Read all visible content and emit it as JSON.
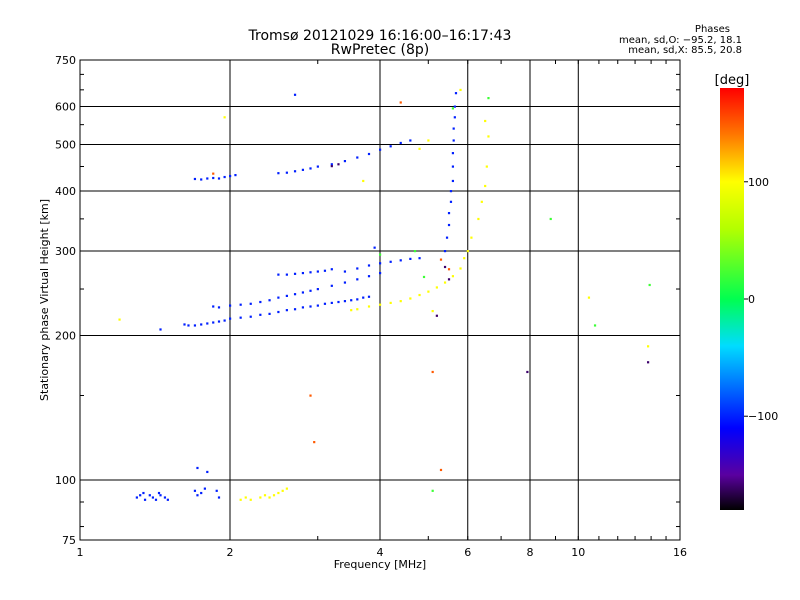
{
  "header": {
    "title": "Tromsø 20121029 16:16:00–16:17:43",
    "subtitle": "RwPretec (8p)",
    "phases_title": "Phases",
    "phases_o": "mean, sd,O: −95.2, 18.1",
    "phases_x": "mean, sd,X: 85.5, 20.8"
  },
  "colorbar": {
    "label": "[deg]",
    "range": [
      -180,
      180
    ],
    "ticks": [
      100,
      0,
      -100
    ],
    "tick_labels": [
      "100",
      "0",
      "−100"
    ]
  },
  "chart_data": {
    "type": "scatter",
    "title": "Tromsø 20121029 16:16:00–16:17:43",
    "subtitle": "RwPretec (8p)",
    "xlabel": "Frequency [MHz]",
    "ylabel": "Stationary phase Virtual Height [km]",
    "x_scale": "log",
    "y_scale": "log",
    "xlim": [
      1,
      16
    ],
    "ylim": [
      75,
      750
    ],
    "grid": true,
    "x_ticks": [
      1,
      2,
      4,
      6,
      8,
      10,
      16
    ],
    "x_tick_labels": [
      "1",
      "2",
      "4",
      "6",
      "8",
      "10",
      "16"
    ],
    "y_ticks": [
      75,
      100,
      200,
      300,
      400,
      500,
      600,
      750
    ],
    "y_tick_labels": [
      "75",
      "100",
      "200",
      "300",
      "400",
      "500",
      "600",
      "750"
    ],
    "color_variable": "phase [deg]",
    "series": [
      {
        "color_phase": -100,
        "points": [
          [
            1.3,
            92
          ],
          [
            1.32,
            93
          ],
          [
            1.35,
            91
          ],
          [
            1.38,
            93
          ],
          [
            1.4,
            92
          ],
          [
            1.42,
            91
          ],
          [
            1.45,
            93
          ],
          [
            1.48,
            92
          ],
          [
            1.5,
            91
          ],
          [
            1.34,
            94
          ],
          [
            1.44,
            94
          ],
          [
            1.7,
            95
          ],
          [
            1.72,
            93
          ],
          [
            1.75,
            94
          ],
          [
            1.78,
            96
          ],
          [
            1.8,
            104
          ],
          [
            1.72,
            106
          ],
          [
            1.88,
            95
          ],
          [
            1.9,
            92
          ],
          [
            1.62,
            211
          ],
          [
            1.65,
            210
          ],
          [
            1.7,
            210
          ],
          [
            1.75,
            211
          ],
          [
            1.8,
            212
          ],
          [
            1.85,
            213
          ],
          [
            1.9,
            214
          ],
          [
            1.95,
            215
          ],
          [
            2.0,
            217
          ],
          [
            2.1,
            218
          ],
          [
            2.2,
            219
          ],
          [
            2.3,
            221
          ],
          [
            2.4,
            222
          ],
          [
            2.5,
            224
          ],
          [
            2.6,
            226
          ],
          [
            2.7,
            227
          ],
          [
            2.8,
            229
          ],
          [
            2.9,
            230
          ],
          [
            3.0,
            231
          ],
          [
            3.1,
            233
          ],
          [
            3.2,
            234
          ],
          [
            3.3,
            235
          ],
          [
            3.4,
            236
          ],
          [
            3.5,
            237
          ],
          [
            3.6,
            238
          ],
          [
            3.7,
            240
          ],
          [
            3.8,
            241
          ],
          [
            1.85,
            230
          ],
          [
            1.9,
            229
          ],
          [
            2.0,
            231
          ],
          [
            2.1,
            232
          ],
          [
            2.2,
            233
          ],
          [
            2.3,
            235
          ],
          [
            2.4,
            237
          ],
          [
            2.5,
            240
          ],
          [
            2.6,
            242
          ],
          [
            2.7,
            244
          ],
          [
            2.8,
            246
          ],
          [
            2.9,
            248
          ],
          [
            3.0,
            250
          ],
          [
            3.2,
            254
          ],
          [
            3.4,
            258
          ],
          [
            3.6,
            262
          ],
          [
            3.8,
            266
          ],
          [
            4.0,
            270
          ],
          [
            2.5,
            268
          ],
          [
            2.6,
            268
          ],
          [
            2.7,
            269
          ],
          [
            2.8,
            270
          ],
          [
            2.9,
            271
          ],
          [
            3.0,
            272
          ],
          [
            3.1,
            273
          ],
          [
            3.2,
            275
          ],
          [
            3.4,
            272
          ],
          [
            3.6,
            276
          ],
          [
            3.8,
            280
          ],
          [
            4.0,
            283
          ],
          [
            4.2,
            285
          ],
          [
            4.4,
            287
          ],
          [
            4.6,
            289
          ],
          [
            4.8,
            290
          ],
          [
            1.7,
            424
          ],
          [
            1.75,
            423
          ],
          [
            1.8,
            425
          ],
          [
            1.85,
            426
          ],
          [
            1.9,
            425
          ],
          [
            1.95,
            428
          ],
          [
            2.0,
            430
          ],
          [
            2.05,
            432
          ],
          [
            2.5,
            436
          ],
          [
            2.6,
            437
          ],
          [
            2.7,
            440
          ],
          [
            2.8,
            443
          ],
          [
            2.9,
            446
          ],
          [
            3.0,
            450
          ],
          [
            3.2,
            455
          ],
          [
            3.4,
            462
          ],
          [
            3.6,
            470
          ],
          [
            3.8,
            478
          ],
          [
            4.0,
            488
          ],
          [
            4.2,
            496
          ],
          [
            4.4,
            504
          ],
          [
            4.6,
            510
          ],
          [
            5.4,
            300
          ],
          [
            5.45,
            320
          ],
          [
            5.5,
            340
          ],
          [
            5.5,
            360
          ],
          [
            5.55,
            380
          ],
          [
            5.55,
            400
          ],
          [
            5.6,
            420
          ],
          [
            5.6,
            450
          ],
          [
            5.6,
            480
          ],
          [
            5.62,
            510
          ],
          [
            5.62,
            540
          ],
          [
            5.65,
            570
          ],
          [
            5.65,
            600
          ],
          [
            5.68,
            640
          ],
          [
            2.7,
            635
          ],
          [
            1.45,
            206
          ],
          [
            3.9,
            305
          ]
        ]
      },
      {
        "color_phase": 100,
        "points": [
          [
            2.1,
            91
          ],
          [
            2.15,
            92
          ],
          [
            2.2,
            91
          ],
          [
            2.3,
            92
          ],
          [
            2.35,
            93
          ],
          [
            2.4,
            92
          ],
          [
            2.45,
            93
          ],
          [
            2.5,
            94
          ],
          [
            2.55,
            95
          ],
          [
            2.6,
            96
          ],
          [
            3.5,
            226
          ],
          [
            3.6,
            227
          ],
          [
            3.8,
            230
          ],
          [
            4.0,
            232
          ],
          [
            4.2,
            234
          ],
          [
            4.4,
            236
          ],
          [
            4.6,
            239
          ],
          [
            4.8,
            243
          ],
          [
            5.0,
            247
          ],
          [
            5.2,
            252
          ],
          [
            5.4,
            258
          ],
          [
            5.6,
            266
          ],
          [
            5.8,
            276
          ],
          [
            5.9,
            290
          ],
          [
            6.0,
            300
          ],
          [
            6.1,
            320
          ],
          [
            6.3,
            350
          ],
          [
            6.4,
            380
          ],
          [
            6.5,
            410
          ],
          [
            6.55,
            450
          ],
          [
            6.6,
            520
          ],
          [
            6.5,
            560
          ],
          [
            1.2,
            216
          ],
          [
            1.95,
            570
          ],
          [
            5.0,
            510
          ],
          [
            4.8,
            490
          ],
          [
            3.7,
            420
          ],
          [
            5.8,
            650
          ],
          [
            10.5,
            240
          ],
          [
            13.8,
            190
          ],
          [
            5.1,
            225
          ]
        ]
      },
      {
        "color_phase": 20,
        "points": [
          [
            5.6,
            595
          ],
          [
            6.6,
            625
          ],
          [
            8.8,
            350
          ],
          [
            13.9,
            255
          ],
          [
            10.8,
            210
          ],
          [
            5.1,
            95
          ],
          [
            4.0,
            295
          ],
          [
            4.7,
            300
          ],
          [
            4.9,
            265
          ]
        ]
      },
      {
        "color_phase": -160,
        "points": [
          [
            5.2,
            220
          ],
          [
            5.4,
            278
          ],
          [
            5.5,
            262
          ],
          [
            3.2,
            451
          ],
          [
            3.3,
            455
          ],
          [
            7.9,
            168
          ],
          [
            13.8,
            176
          ]
        ]
      },
      {
        "color_phase": 150,
        "points": [
          [
            2.9,
            150
          ],
          [
            5.3,
            288
          ],
          [
            5.5,
            275
          ],
          [
            4.4,
            612
          ],
          [
            2.95,
            120
          ],
          [
            5.1,
            168
          ],
          [
            1.85,
            435
          ],
          [
            5.3,
            105
          ]
        ]
      }
    ]
  }
}
